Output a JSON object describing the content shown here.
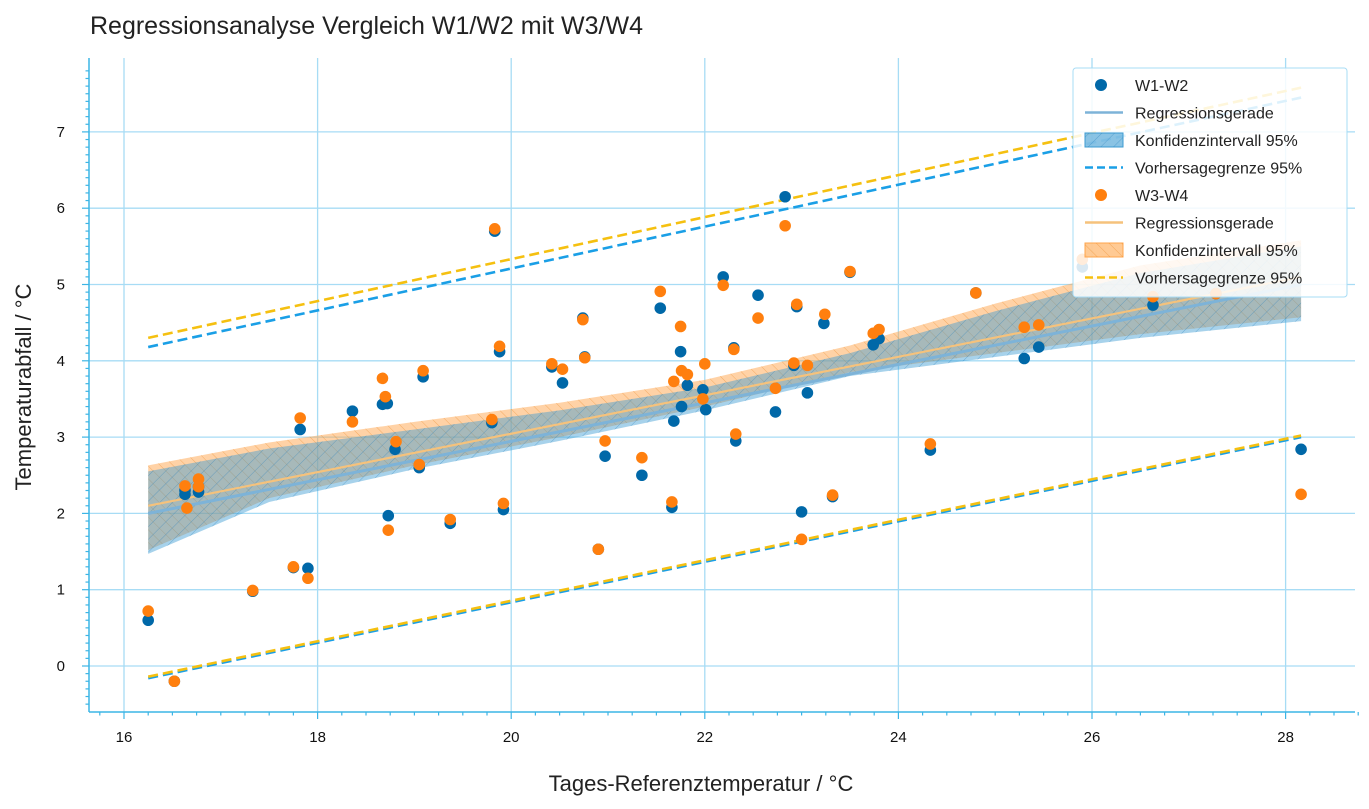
{
  "chart_data": {
    "type": "scatter",
    "title": "Regressionsanalyse Vergleich W1/W2 mit W3/W4",
    "xlabel": "Tages-Referenztemperatur / °C",
    "ylabel": "Temperaturabfall / °C",
    "xlim": [
      15.6,
      28.75
    ],
    "ylim": [
      -0.6,
      8.0
    ],
    "xticks": [
      16,
      18,
      20,
      22,
      24,
      26,
      28
    ],
    "yticks": [
      0,
      1,
      2,
      3,
      4,
      5,
      6,
      7
    ],
    "grid": true,
    "legend_position": "top-right",
    "series": [
      {
        "name": "W1-W2",
        "color": "#0068a8",
        "points": [
          [
            16.25,
            0.6
          ],
          [
            16.52,
            -0.2
          ],
          [
            16.63,
            2.25
          ],
          [
            16.63,
            2.3
          ],
          [
            16.77,
            2.28
          ],
          [
            16.77,
            2.35
          ],
          [
            17.33,
            0.98
          ],
          [
            17.75,
            1.29
          ],
          [
            17.82,
            3.1
          ],
          [
            17.9,
            1.28
          ],
          [
            18.36,
            3.34
          ],
          [
            18.67,
            3.43
          ],
          [
            18.72,
            3.44
          ],
          [
            18.73,
            1.97
          ],
          [
            18.8,
            2.84
          ],
          [
            19.05,
            2.6
          ],
          [
            19.09,
            3.79
          ],
          [
            19.37,
            1.87
          ],
          [
            19.8,
            3.19
          ],
          [
            19.83,
            5.7
          ],
          [
            19.88,
            4.12
          ],
          [
            19.92,
            2.05
          ],
          [
            20.42,
            3.92
          ],
          [
            20.53,
            3.71
          ],
          [
            20.74,
            4.56
          ],
          [
            20.76,
            4.05
          ],
          [
            20.9,
            1.53
          ],
          [
            20.97,
            2.75
          ],
          [
            21.35,
            2.5
          ],
          [
            21.54,
            4.69
          ],
          [
            21.66,
            2.08
          ],
          [
            21.68,
            3.21
          ],
          [
            21.76,
            3.4
          ],
          [
            21.75,
            4.12
          ],
          [
            21.82,
            3.68
          ],
          [
            21.98,
            3.62
          ],
          [
            22.01,
            3.36
          ],
          [
            22.19,
            5.1
          ],
          [
            22.3,
            4.17
          ],
          [
            22.32,
            2.95
          ],
          [
            22.55,
            4.86
          ],
          [
            22.73,
            3.33
          ],
          [
            22.83,
            6.15
          ],
          [
            22.92,
            3.94
          ],
          [
            22.95,
            4.71
          ],
          [
            23.0,
            2.02
          ],
          [
            23.06,
            3.58
          ],
          [
            23.23,
            4.49
          ],
          [
            23.32,
            2.22
          ],
          [
            23.5,
            5.16
          ],
          [
            23.74,
            4.21
          ],
          [
            23.8,
            4.29
          ],
          [
            24.33,
            2.83
          ],
          [
            24.8,
            4.89
          ],
          [
            25.3,
            4.03
          ],
          [
            25.45,
            4.18
          ],
          [
            25.9,
            5.23
          ],
          [
            26.63,
            4.73
          ],
          [
            27.28,
            4.88
          ],
          [
            28.16,
            2.84
          ]
        ]
      },
      {
        "name": "W3-W4",
        "color": "#ff7f0e",
        "points": [
          [
            16.25,
            0.72
          ],
          [
            16.52,
            -0.2
          ],
          [
            16.63,
            2.36
          ],
          [
            16.65,
            2.07
          ],
          [
            16.77,
            2.45
          ],
          [
            16.77,
            2.35
          ],
          [
            17.33,
            0.99
          ],
          [
            17.75,
            1.3
          ],
          [
            17.82,
            3.25
          ],
          [
            17.9,
            1.15
          ],
          [
            18.36,
            3.2
          ],
          [
            18.67,
            3.77
          ],
          [
            18.7,
            3.53
          ],
          [
            18.73,
            1.78
          ],
          [
            18.81,
            2.94
          ],
          [
            19.05,
            2.64
          ],
          [
            19.09,
            3.87
          ],
          [
            19.37,
            1.92
          ],
          [
            19.8,
            3.23
          ],
          [
            19.83,
            5.73
          ],
          [
            19.88,
            4.19
          ],
          [
            19.92,
            2.13
          ],
          [
            20.42,
            3.96
          ],
          [
            20.53,
            3.89
          ],
          [
            20.74,
            4.54
          ],
          [
            20.76,
            4.04
          ],
          [
            20.9,
            1.53
          ],
          [
            20.97,
            2.95
          ],
          [
            21.35,
            2.73
          ],
          [
            21.54,
            4.91
          ],
          [
            21.66,
            2.15
          ],
          [
            21.68,
            3.73
          ],
          [
            21.76,
            3.87
          ],
          [
            21.75,
            4.45
          ],
          [
            21.82,
            3.82
          ],
          [
            21.98,
            3.5
          ],
          [
            22.0,
            3.96
          ],
          [
            22.19,
            4.99
          ],
          [
            22.3,
            4.15
          ],
          [
            22.32,
            3.04
          ],
          [
            22.55,
            4.56
          ],
          [
            22.73,
            3.64
          ],
          [
            22.83,
            5.77
          ],
          [
            22.92,
            3.97
          ],
          [
            22.95,
            4.74
          ],
          [
            23.0,
            1.66
          ],
          [
            23.06,
            3.94
          ],
          [
            23.24,
            4.61
          ],
          [
            23.32,
            2.24
          ],
          [
            23.5,
            5.17
          ],
          [
            23.74,
            4.36
          ],
          [
            23.8,
            4.41
          ],
          [
            24.33,
            2.91
          ],
          [
            24.8,
            4.89
          ],
          [
            25.3,
            4.44
          ],
          [
            25.45,
            4.47
          ],
          [
            25.9,
            5.33
          ],
          [
            26.63,
            4.84
          ],
          [
            27.28,
            4.88
          ],
          [
            28.16,
            2.25
          ]
        ]
      }
    ],
    "regression": [
      {
        "series": "W1-W2",
        "line": [
          [
            16.25,
            2.0
          ],
          [
            28.16,
            5.0
          ]
        ],
        "ci_upper": [
          [
            16.25,
            2.55
          ],
          [
            17.5,
            2.85
          ],
          [
            19.0,
            3.1
          ],
          [
            20.5,
            3.35
          ],
          [
            22.0,
            3.65
          ],
          [
            23.5,
            4.1
          ],
          [
            25.0,
            4.65
          ],
          [
            26.5,
            5.15
          ],
          [
            28.16,
            5.5
          ]
        ],
        "ci_lower": [
          [
            16.25,
            1.47
          ],
          [
            17.5,
            2.15
          ],
          [
            19.0,
            2.58
          ],
          [
            20.5,
            2.95
          ],
          [
            22.0,
            3.35
          ],
          [
            23.5,
            3.8
          ],
          [
            25.0,
            4.05
          ],
          [
            26.5,
            4.3
          ],
          [
            28.16,
            4.52
          ]
        ],
        "prediction_upper": [
          [
            16.25,
            4.18
          ],
          [
            28.16,
            7.45
          ]
        ],
        "prediction_lower": [
          [
            16.25,
            -0.16
          ],
          [
            28.16,
            3.0
          ]
        ]
      },
      {
        "series": "W3-W4",
        "line": [
          [
            16.25,
            2.1
          ],
          [
            28.16,
            5.1
          ]
        ],
        "ci_upper": [
          [
            16.25,
            2.63
          ],
          [
            17.5,
            2.93
          ],
          [
            19.0,
            3.2
          ],
          [
            20.5,
            3.45
          ],
          [
            22.0,
            3.75
          ],
          [
            23.5,
            4.2
          ],
          [
            25.0,
            4.75
          ],
          [
            26.5,
            5.25
          ],
          [
            28.16,
            5.58
          ]
        ],
        "ci_lower": [
          [
            16.25,
            1.52
          ],
          [
            17.5,
            2.2
          ],
          [
            19.0,
            2.63
          ],
          [
            20.5,
            3.0
          ],
          [
            22.0,
            3.4
          ],
          [
            23.5,
            3.85
          ],
          [
            25.0,
            4.1
          ],
          [
            26.5,
            4.35
          ],
          [
            28.16,
            4.57
          ]
        ],
        "prediction_upper": [
          [
            16.25,
            4.3
          ],
          [
            28.16,
            7.58
          ]
        ],
        "prediction_lower": [
          [
            16.25,
            -0.14
          ],
          [
            28.16,
            3.02
          ]
        ]
      }
    ],
    "colors": {
      "w12_line": "#7db3d8",
      "w12_ci": "#3c9bd2",
      "w12_pred": "#1a9fe6",
      "w34_line": "#f5c27c",
      "w34_ci": "#ffa64d",
      "w34_pred": "#f5c010",
      "grid": "#a7dcf5",
      "axis": "#3cb5e5"
    },
    "legend": [
      {
        "label": "W1-W2",
        "kind": "marker",
        "color": "#0068a8"
      },
      {
        "label": "Regressionsgerade",
        "kind": "line",
        "color": "#7db3d8"
      },
      {
        "label": "Konfidenzintervall 95%",
        "kind": "patch",
        "color": "#3c9bd2"
      },
      {
        "label": "Vorhersagegrenze 95%",
        "kind": "dash",
        "color": "#1a9fe6"
      },
      {
        "label": "W3-W4",
        "kind": "marker",
        "color": "#ff7f0e"
      },
      {
        "label": "Regressionsgerade",
        "kind": "line",
        "color": "#f5c27c"
      },
      {
        "label": "Konfidenzintervall 95%",
        "kind": "patch",
        "color": "#ffa64d"
      },
      {
        "label": "Vorhersagegrenze 95%",
        "kind": "dash",
        "color": "#f5c010"
      }
    ]
  }
}
